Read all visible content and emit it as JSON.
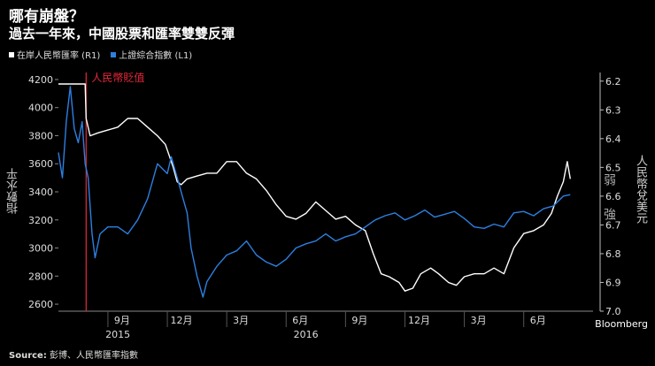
{
  "title": "哪有崩盤？",
  "subtitle": "過去一年來，中國股票和匯率雙雙反彈",
  "source_label": "Source:",
  "source_text": "彭博、人民幣匯率指數",
  "watermark": "Bloomberg",
  "chart_data": {
    "type": "line",
    "title": "哪有崩盤？",
    "subtitle": "過去一年來，中國股票和匯率雙雙反彈",
    "x_ticks": [
      "9月",
      "12月",
      "3月",
      "6月",
      "9月",
      "12月",
      "3月",
      "6月"
    ],
    "x_tick_months": [
      2,
      5,
      8,
      11,
      14,
      17,
      20,
      23
    ],
    "x_years": [
      {
        "label": "2015",
        "month": 2.5
      },
      {
        "label": "2016",
        "month": 12
      }
    ],
    "x_range": [
      -0.5,
      26.5
    ],
    "y_left": {
      "label": "指數水平",
      "range": [
        2550,
        4250
      ],
      "ticks": [
        2600,
        2800,
        3000,
        3200,
        3400,
        3600,
        3800,
        4000,
        4200
      ]
    },
    "y_right": {
      "label": "人民幣兌美元",
      "range": [
        7.0,
        6.17
      ],
      "ticks": [
        6.2,
        6.3,
        6.4,
        6.5,
        6.6,
        6.7,
        6.8,
        6.9,
        7.0
      ],
      "inverted": true
    },
    "annotations": [
      {
        "text": "人民幣貶值",
        "month": 0.9,
        "color": "#e8273a"
      },
      {
        "text": "弱",
        "axis": "right",
        "value": 6.54
      },
      {
        "text": "強",
        "axis": "right",
        "value": 6.66
      }
    ],
    "grid": false,
    "legend_position": "top-left",
    "series": [
      {
        "name": "在岸人民幣匯率 (R1)",
        "axis": "right",
        "color": "#ffffff",
        "points": [
          [
            -0.5,
            6.21
          ],
          [
            0.0,
            6.21
          ],
          [
            0.5,
            6.21
          ],
          [
            0.85,
            6.21
          ],
          [
            0.9,
            6.33
          ],
          [
            1.1,
            6.39
          ],
          [
            1.5,
            6.38
          ],
          [
            2.0,
            6.37
          ],
          [
            2.5,
            6.36
          ],
          [
            3.0,
            6.33
          ],
          [
            3.5,
            6.33
          ],
          [
            4.0,
            6.36
          ],
          [
            4.5,
            6.39
          ],
          [
            4.9,
            6.42
          ],
          [
            5.1,
            6.46
          ],
          [
            5.3,
            6.5
          ],
          [
            5.5,
            6.55
          ],
          [
            5.7,
            6.56
          ],
          [
            6.0,
            6.54
          ],
          [
            6.5,
            6.53
          ],
          [
            7.0,
            6.52
          ],
          [
            7.5,
            6.52
          ],
          [
            8.0,
            6.48
          ],
          [
            8.5,
            6.48
          ],
          [
            9.0,
            6.52
          ],
          [
            9.5,
            6.54
          ],
          [
            10.0,
            6.58
          ],
          [
            10.5,
            6.63
          ],
          [
            11.0,
            6.67
          ],
          [
            11.5,
            6.68
          ],
          [
            12.0,
            6.66
          ],
          [
            12.5,
            6.62
          ],
          [
            13.0,
            6.65
          ],
          [
            13.5,
            6.68
          ],
          [
            14.0,
            6.67
          ],
          [
            14.5,
            6.7
          ],
          [
            15.0,
            6.72
          ],
          [
            15.4,
            6.8
          ],
          [
            15.8,
            6.87
          ],
          [
            16.2,
            6.88
          ],
          [
            16.7,
            6.9
          ],
          [
            17.0,
            6.93
          ],
          [
            17.4,
            6.92
          ],
          [
            17.8,
            6.87
          ],
          [
            18.3,
            6.85
          ],
          [
            18.7,
            6.87
          ],
          [
            19.2,
            6.9
          ],
          [
            19.6,
            6.91
          ],
          [
            20.0,
            6.88
          ],
          [
            20.5,
            6.87
          ],
          [
            21.0,
            6.87
          ],
          [
            21.5,
            6.85
          ],
          [
            22.0,
            6.87
          ],
          [
            22.5,
            6.78
          ],
          [
            23.0,
            6.73
          ],
          [
            23.5,
            6.72
          ],
          [
            24.0,
            6.7
          ],
          [
            24.4,
            6.66
          ],
          [
            24.7,
            6.6
          ],
          [
            25.0,
            6.55
          ],
          [
            25.2,
            6.48
          ],
          [
            25.35,
            6.54
          ]
        ]
      },
      {
        "name": "上證綜合指數 (L1)",
        "axis": "left",
        "color": "#2d7fe0",
        "points": [
          [
            -0.5,
            3680
          ],
          [
            -0.3,
            3500
          ],
          [
            -0.1,
            3900
          ],
          [
            0.1,
            4150
          ],
          [
            0.3,
            3850
          ],
          [
            0.5,
            3750
          ],
          [
            0.7,
            3900
          ],
          [
            0.85,
            3600
          ],
          [
            1.0,
            3500
          ],
          [
            1.2,
            3100
          ],
          [
            1.35,
            2930
          ],
          [
            1.6,
            3100
          ],
          [
            2.0,
            3150
          ],
          [
            2.5,
            3150
          ],
          [
            3.0,
            3100
          ],
          [
            3.5,
            3200
          ],
          [
            4.0,
            3350
          ],
          [
            4.5,
            3600
          ],
          [
            5.0,
            3530
          ],
          [
            5.2,
            3650
          ],
          [
            5.5,
            3500
          ],
          [
            5.8,
            3350
          ],
          [
            6.0,
            3250
          ],
          [
            6.2,
            3000
          ],
          [
            6.5,
            2800
          ],
          [
            6.8,
            2650
          ],
          [
            7.0,
            2760
          ],
          [
            7.5,
            2870
          ],
          [
            8.0,
            2950
          ],
          [
            8.5,
            2980
          ],
          [
            9.0,
            3050
          ],
          [
            9.5,
            2950
          ],
          [
            10.0,
            2900
          ],
          [
            10.5,
            2870
          ],
          [
            11.0,
            2920
          ],
          [
            11.5,
            3000
          ],
          [
            12.0,
            3030
          ],
          [
            12.5,
            3050
          ],
          [
            13.0,
            3100
          ],
          [
            13.5,
            3050
          ],
          [
            14.0,
            3080
          ],
          [
            14.5,
            3100
          ],
          [
            15.0,
            3150
          ],
          [
            15.5,
            3200
          ],
          [
            16.0,
            3230
          ],
          [
            16.5,
            3250
          ],
          [
            17.0,
            3200
          ],
          [
            17.5,
            3230
          ],
          [
            18.0,
            3270
          ],
          [
            18.5,
            3220
          ],
          [
            19.0,
            3240
          ],
          [
            19.5,
            3260
          ],
          [
            20.0,
            3210
          ],
          [
            20.5,
            3150
          ],
          [
            21.0,
            3140
          ],
          [
            21.5,
            3170
          ],
          [
            22.0,
            3150
          ],
          [
            22.5,
            3250
          ],
          [
            23.0,
            3260
          ],
          [
            23.5,
            3230
          ],
          [
            24.0,
            3280
          ],
          [
            24.5,
            3300
          ],
          [
            25.0,
            3370
          ],
          [
            25.35,
            3380
          ]
        ]
      }
    ]
  },
  "legend": [
    {
      "label": "在岸人民幣匯率 (R1)",
      "color": "#ffffff"
    },
    {
      "label": "上證綜合指數 (L1)",
      "color": "#2d7fe0"
    }
  ]
}
